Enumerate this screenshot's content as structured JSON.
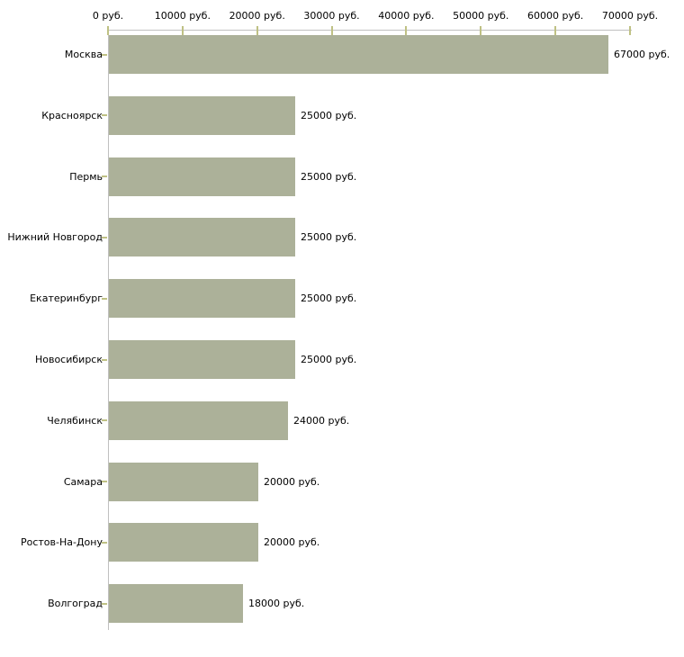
{
  "chart_data": {
    "type": "bar",
    "orientation": "horizontal",
    "title": "",
    "categories": [
      "Москва",
      "Красноярск",
      "Пермь",
      "Нижний Новгород",
      "Екатеринбург",
      "Новосибирск",
      "Челябинск",
      "Самара",
      "Ростов-На-Дону",
      "Волгоград"
    ],
    "values": [
      67000,
      25000,
      25000,
      25000,
      25000,
      25000,
      24000,
      20000,
      20000,
      18000
    ],
    "value_labels": [
      "67000 руб.",
      "25000 руб.",
      "25000 руб.",
      "25000 руб.",
      "25000 руб.",
      "25000 руб.",
      "24000 руб.",
      "20000 руб.",
      "20000 руб.",
      "18000 руб."
    ],
    "x_axis": {
      "min": 0,
      "max": 70000,
      "tick_interval": 10000,
      "position": "top",
      "tick_labels": [
        "0 руб.",
        "10000 руб.",
        "20000 руб.",
        "30000 руб.",
        "40000 руб.",
        "50000 руб.",
        "60000 руб.",
        "70000 руб."
      ]
    },
    "ylabel": "",
    "xlabel": "",
    "grid": false,
    "legend": false,
    "colors": {
      "bar": "#acb199",
      "axis": "#c0c0c0",
      "tick": "#bfc184",
      "text": "#000000",
      "background": "#ffffff"
    }
  }
}
